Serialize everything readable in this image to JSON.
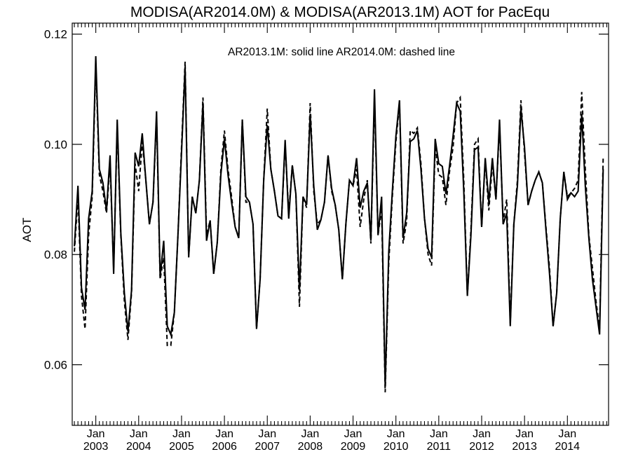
{
  "chart_data": {
    "type": "line",
    "title": "MODISA(AR2014.0M) & MODISA(AR2013.1M)  AOT for PacEqu",
    "xlabel": "",
    "ylabel": "AOT",
    "annotation": "AR2013.1M: solid line   AR2014.0M: dashed line",
    "xlim": [
      2002.45,
      2014.96
    ],
    "ylim": [
      0.049,
      0.122
    ],
    "y_ticks": [
      0.06,
      0.08,
      0.1,
      0.12
    ],
    "y_tick_labels": [
      "0.06",
      "0.08",
      "0.10",
      "0.12"
    ],
    "x_ticks": [
      2003,
      2004,
      2005,
      2006,
      2007,
      2008,
      2009,
      2010,
      2011,
      2012,
      2013,
      2014
    ],
    "x_tick_labels": [
      {
        "month": "Jan",
        "year": "2003"
      },
      {
        "month": "Jan",
        "year": "2004"
      },
      {
        "month": "Jan",
        "year": "2005"
      },
      {
        "month": "Jan",
        "year": "2006"
      },
      {
        "month": "Jan",
        "year": "2007"
      },
      {
        "month": "Jan",
        "year": "2008"
      },
      {
        "month": "Jan",
        "year": "2009"
      },
      {
        "month": "Jan",
        "year": "2010"
      },
      {
        "month": "Jan",
        "year": "2011"
      },
      {
        "month": "Jan",
        "year": "2012"
      },
      {
        "month": "Jan",
        "year": "2013"
      },
      {
        "month": "Jan",
        "year": "2014"
      }
    ],
    "x_start": "2002-07",
    "x_step": "1 month",
    "series": [
      {
        "name": "AR2013.1M",
        "style": "solid",
        "values": [
          0.0815,
          0.0925,
          0.074,
          0.07,
          0.0865,
          0.0915,
          0.116,
          0.0955,
          0.093,
          0.088,
          0.098,
          0.0765,
          0.1045,
          0.084,
          0.073,
          0.066,
          0.0735,
          0.0985,
          0.096,
          0.102,
          0.0935,
          0.0855,
          0.0895,
          0.106,
          0.076,
          0.0825,
          0.067,
          0.0655,
          0.0695,
          0.0835,
          0.0985,
          0.114,
          0.0795,
          0.0905,
          0.0875,
          0.0935,
          0.1075,
          0.0825,
          0.0862,
          0.0765,
          0.0822,
          0.0945,
          0.101,
          0.0945,
          0.0895,
          0.085,
          0.083,
          0.1045,
          0.0905,
          0.0895,
          0.0855,
          0.0665,
          0.0755,
          0.0935,
          0.1035,
          0.0955,
          0.0915,
          0.087,
          0.0865,
          0.1008,
          0.0865,
          0.0962,
          0.091,
          0.0735,
          0.0905,
          0.089,
          0.1055,
          0.0925,
          0.0845,
          0.0863,
          0.0895,
          0.098,
          0.092,
          0.089,
          0.0845,
          0.0755,
          0.0855,
          0.0935,
          0.0925,
          0.0975,
          0.0885,
          0.0915,
          0.093,
          0.0825,
          0.11,
          0.0835,
          0.0905,
          0.056,
          0.0805,
          0.0915,
          0.1015,
          0.108,
          0.083,
          0.0875,
          0.1005,
          0.101,
          0.1025,
          0.0955,
          0.0865,
          0.081,
          0.0795,
          0.101,
          0.0965,
          0.096,
          0.091,
          0.096,
          0.1015,
          0.1075,
          0.106,
          0.0915,
          0.0725,
          0.0835,
          0.099,
          0.0995,
          0.085,
          0.0975,
          0.0895,
          0.0975,
          0.09,
          0.1045,
          0.0855,
          0.0875,
          0.067,
          0.0855,
          0.0925,
          0.1065,
          0.0995,
          0.089,
          0.0915,
          0.0935,
          0.095,
          0.093,
          0.0845,
          0.0765,
          0.067,
          0.073,
          0.0865,
          0.095,
          0.09,
          0.0912,
          0.0905,
          0.0915,
          0.1055,
          0.0925,
          0.083,
          0.0755,
          0.0705,
          0.0655,
          0.0955
        ]
      },
      {
        "name": "AR2014.0M",
        "style": "dashed",
        "values": [
          0.0805,
          0.0905,
          0.0725,
          0.0665,
          0.0835,
          0.0905,
          0.1145,
          0.0945,
          0.0915,
          0.0875,
          0.0965,
          0.0775,
          0.1035,
          0.0835,
          0.0715,
          0.0645,
          0.073,
          0.0965,
          0.0915,
          0.1005,
          0.0935,
          0.0855,
          0.0895,
          0.105,
          0.0755,
          0.0795,
          0.0635,
          0.0635,
          0.0695,
          0.0835,
          0.0995,
          0.115,
          0.0795,
          0.0905,
          0.0875,
          0.0935,
          0.1085,
          0.0835,
          0.0862,
          0.0765,
          0.0822,
          0.0955,
          0.1025,
          0.0955,
          0.0905,
          0.085,
          0.083,
          0.1045,
          0.0895,
          0.0895,
          0.0855,
          0.0665,
          0.0755,
          0.0935,
          0.1065,
          0.0955,
          0.0915,
          0.087,
          0.0865,
          0.1,
          0.0875,
          0.0962,
          0.091,
          0.0705,
          0.0905,
          0.0885,
          0.1075,
          0.0915,
          0.0855,
          0.0863,
          0.0895,
          0.098,
          0.0915,
          0.089,
          0.0845,
          0.0755,
          0.0855,
          0.0935,
          0.0925,
          0.0955,
          0.085,
          0.09,
          0.0935,
          0.082,
          0.1085,
          0.0835,
          0.0885,
          0.055,
          0.0785,
          0.0905,
          0.1005,
          0.1075,
          0.082,
          0.086,
          0.1025,
          0.102,
          0.103,
          0.0965,
          0.0865,
          0.08,
          0.078,
          0.0995,
          0.0945,
          0.094,
          0.089,
          0.095,
          0.0995,
          0.1075,
          0.1085,
          0.0935,
          0.0725,
          0.0845,
          0.1,
          0.101,
          0.085,
          0.097,
          0.088,
          0.0965,
          0.09,
          0.1035,
          0.086,
          0.09,
          0.0675,
          0.0855,
          0.0935,
          0.108,
          0.0985,
          0.089,
          0.0915,
          0.0935,
          0.095,
          0.093,
          0.085,
          0.0775,
          0.067,
          0.073,
          0.0865,
          0.095,
          0.0905,
          0.0912,
          0.092,
          0.0935,
          0.1095,
          0.0955,
          0.0835,
          0.0775,
          0.0715,
          0.0665,
          0.0975
        ]
      }
    ]
  }
}
